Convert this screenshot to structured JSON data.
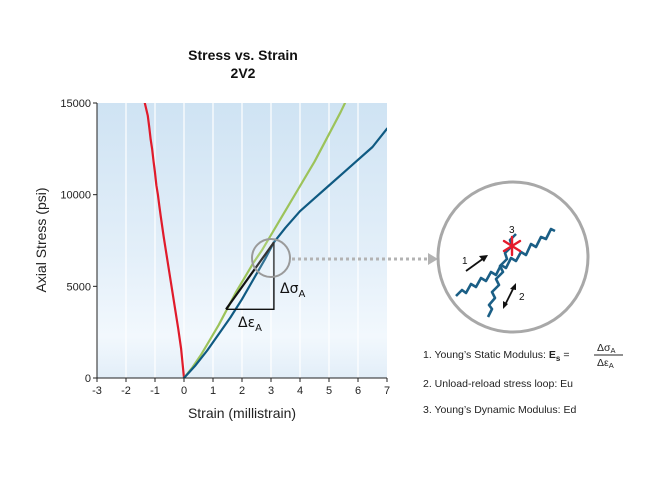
{
  "chart_data": {
    "type": "line",
    "title": "Stress vs. Strain",
    "subtitle": "2V2",
    "xlabel": "Strain (millistrain)",
    "ylabel": "Axial Stress (psi)",
    "xlim": [
      -3,
      7
    ],
    "ylim": [
      0,
      15000
    ],
    "xticks": [
      "-3",
      "-2",
      "-1",
      "0",
      "1",
      "2",
      "3",
      "4",
      "5",
      "6",
      "7"
    ],
    "yticks": [
      "0",
      "5000",
      "10000",
      "15000"
    ],
    "grid": "vertical",
    "colors": {
      "lateral": "#e01b2b",
      "loading_a": "#9cc35a",
      "loading_b": "#0f5a82",
      "secant": "#111111",
      "background_top": "#d3e6f5",
      "background_band": "#eef6fc"
    },
    "series": [
      {
        "key": "lateral",
        "x": [
          -1.35,
          -1.25,
          -1.2,
          -1.15,
          -1.1,
          -1.05,
          -1.0,
          -0.95,
          -0.9,
          -0.85,
          -0.8,
          -0.7,
          -0.6,
          -0.5,
          -0.4,
          -0.3,
          -0.2,
          -0.1,
          0.0
        ],
        "y": [
          15000,
          14300,
          13700,
          13000,
          12500,
          11800,
          11200,
          10500,
          10000,
          9400,
          8800,
          7700,
          6700,
          5700,
          4700,
          3700,
          2700,
          1600,
          0
        ]
      },
      {
        "key": "loading_a",
        "x": [
          0.0,
          0.3,
          0.6,
          0.9,
          1.2,
          1.5,
          1.8,
          2.1,
          2.4,
          2.7,
          3.0,
          3.3,
          3.6,
          3.9,
          4.2,
          4.5,
          4.8,
          5.1,
          5.4,
          5.55
        ],
        "y": [
          0,
          600,
          1300,
          2100,
          2900,
          3800,
          4700,
          5500,
          6300,
          7000,
          7800,
          8600,
          9400,
          10200,
          11000,
          11800,
          12700,
          13600,
          14500,
          15000
        ]
      },
      {
        "key": "loading_b",
        "x": [
          0.0,
          0.4,
          0.8,
          1.2,
          1.6,
          2.0,
          2.4,
          2.8,
          3.1,
          3.5,
          4.0,
          4.5,
          5.0,
          5.5,
          6.0,
          6.5,
          7.0
        ],
        "y": [
          0,
          700,
          1500,
          2400,
          3300,
          4300,
          5400,
          6500,
          7400,
          8200,
          9100,
          9800,
          10500,
          11200,
          11900,
          12600,
          13600
        ]
      }
    ],
    "secant_line": {
      "x": [
        1.45,
        3.1
      ],
      "y": [
        3750,
        7400
      ]
    },
    "triangle": {
      "x": [
        1.45,
        3.1,
        3.1
      ],
      "y": [
        3750,
        3750,
        7400
      ]
    },
    "annotations": {
      "delta_sigma": "Δσ",
      "delta_sigma_sub": "A",
      "delta_epsilon": "Δε",
      "delta_epsilon_sub": "A"
    }
  },
  "inset": {
    "labels": [
      "1",
      "2",
      "3"
    ],
    "notes": {
      "n1_prefix": "1. Young’s Static Modulus: ",
      "n1_symbol": "E",
      "n1_symbol_sub": "s",
      "n1_eq": "=",
      "n1_num": "Δσ",
      "n1_num_sub": "A",
      "n1_den": "Δε",
      "n1_den_sub": "A",
      "n2": "2. Unload-reload stress loop: Eu",
      "n3": "3. Young’s Dynamic Modulus: Ed"
    }
  }
}
